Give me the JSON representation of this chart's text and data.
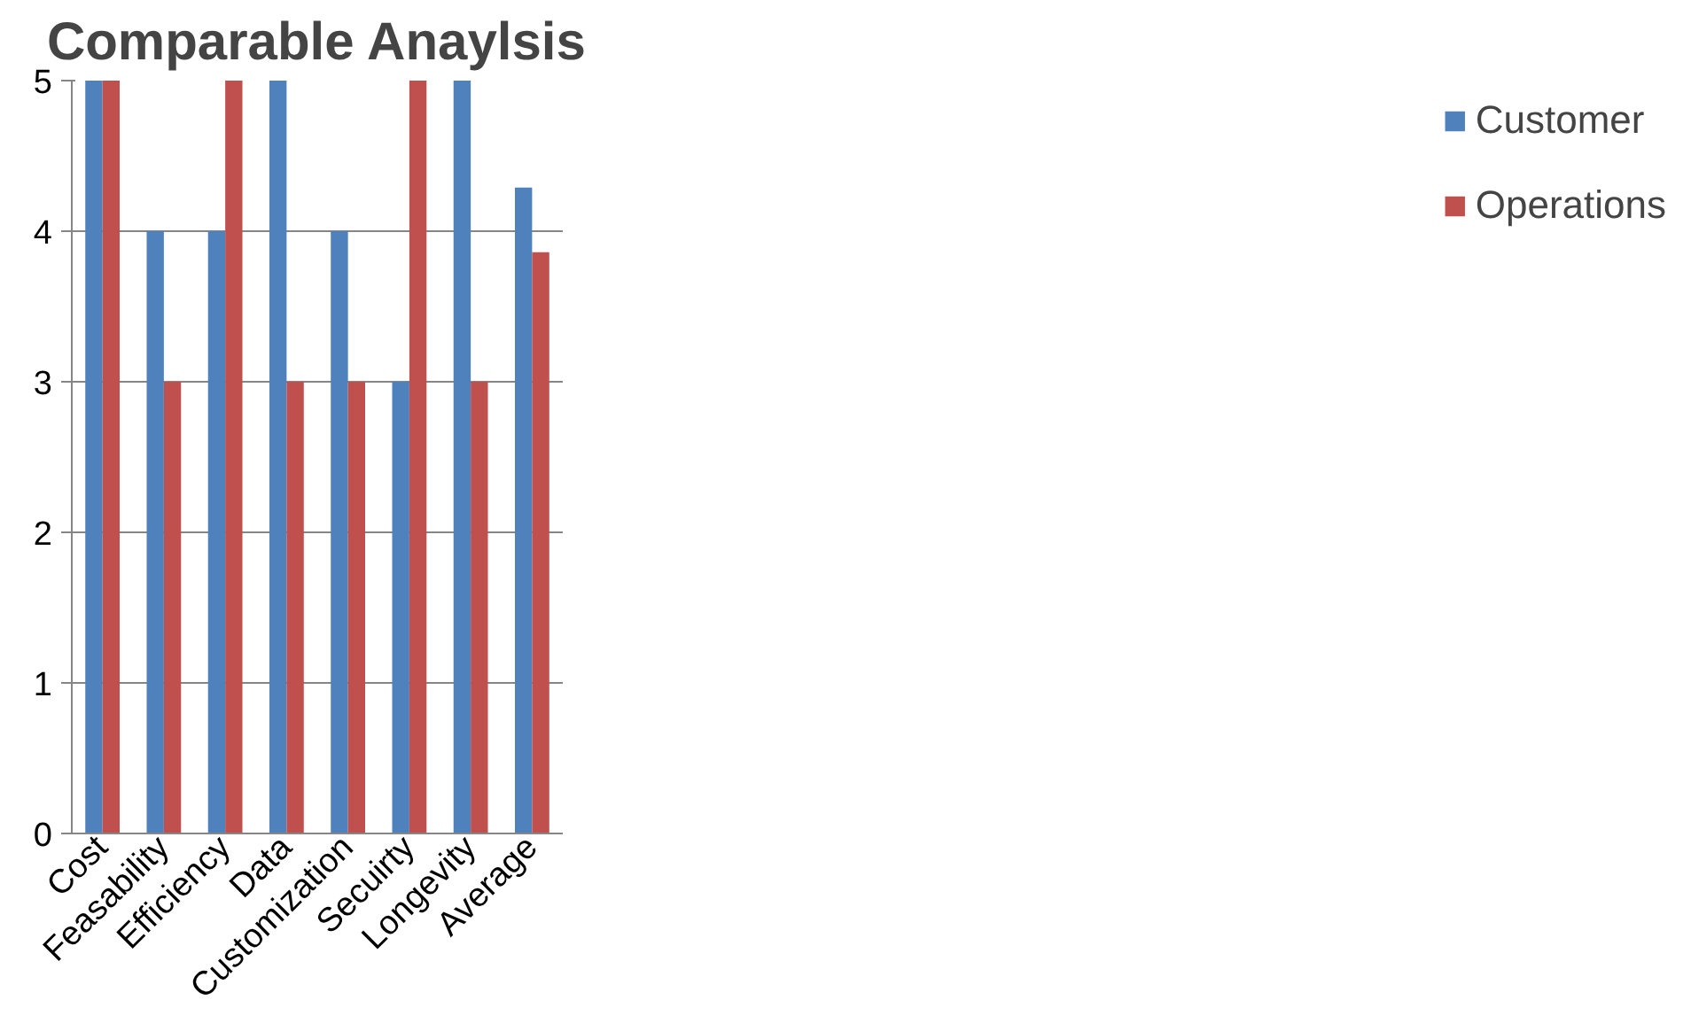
{
  "chart_data": {
    "type": "bar",
    "title": "Comparable Anaylsis",
    "categories": [
      "Cost",
      "Feasability",
      "Efficiency",
      "Data",
      "Customization",
      "Secuirty",
      "Longevity",
      "Average"
    ],
    "series": [
      {
        "name": "Customer",
        "color": "#4f81bd",
        "values": [
          5,
          4,
          4,
          5,
          4,
          3,
          5,
          4.29
        ]
      },
      {
        "name": "Operations",
        "color": "#c0504d",
        "values": [
          5,
          3,
          5,
          3,
          3,
          5,
          3,
          3.86
        ]
      }
    ],
    "ylim": [
      0,
      5
    ],
    "yticks": [
      0,
      1,
      2,
      3,
      4,
      5
    ],
    "grid": "y",
    "legend": "right"
  }
}
